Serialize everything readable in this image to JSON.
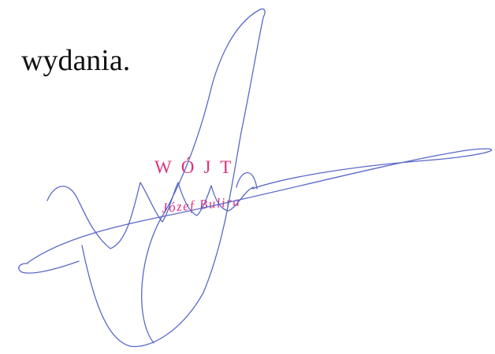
{
  "document": {
    "text_line": "wydania."
  },
  "stamp": {
    "title": "WÓJT",
    "name": "Józef Bulira",
    "color": "#e0307a"
  },
  "signature": {
    "color": "#5a68c8"
  }
}
